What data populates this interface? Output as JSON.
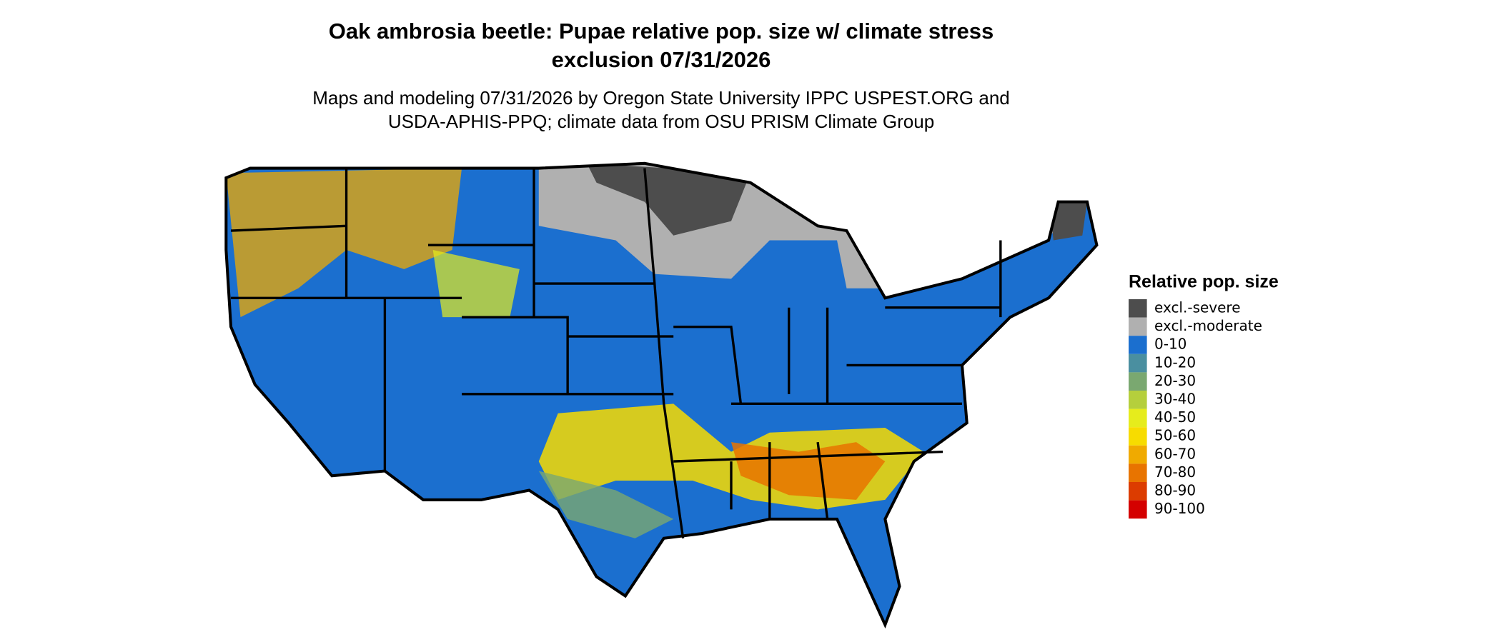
{
  "title": [
    "Oak ambrosia beetle: Pupae relative pop. size w/ climate stress",
    "exclusion 07/31/2026"
  ],
  "subtitle": [
    "Maps and modeling 07/31/2026 by Oregon State University IPPC USPEST.ORG and",
    "USDA-APHIS-PPQ; climate data from OSU PRISM Climate Group"
  ],
  "legend": {
    "title": "Relative pop. size",
    "items": [
      {
        "label": "excl.-severe",
        "color": "#4d4d4d"
      },
      {
        "label": "excl.-moderate",
        "color": "#b0b0b0"
      },
      {
        "label": "0-10",
        "color": "#1b6fcf"
      },
      {
        "label": "10-20",
        "color": "#4a8fa0"
      },
      {
        "label": "20-30",
        "color": "#7aa870"
      },
      {
        "label": "30-40",
        "color": "#b5cf3c"
      },
      {
        "label": "40-50",
        "color": "#e6ec1c"
      },
      {
        "label": "50-60",
        "color": "#f7dc00"
      },
      {
        "label": "60-70",
        "color": "#f0aa00"
      },
      {
        "label": "70-80",
        "color": "#e87400"
      },
      {
        "label": "80-90",
        "color": "#dc3c00"
      },
      {
        "label": "90-100",
        "color": "#d40000"
      }
    ]
  }
}
